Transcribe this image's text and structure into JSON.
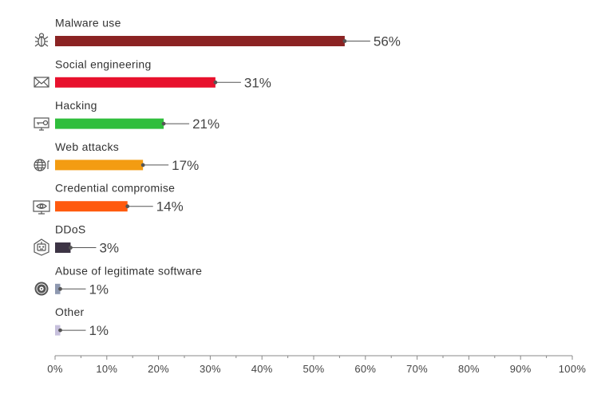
{
  "chart_data": {
    "type": "bar",
    "orientation": "horizontal",
    "title": "",
    "xlabel": "",
    "ylabel": "",
    "xlim": [
      0,
      100
    ],
    "grid": false,
    "legend": "none",
    "ticks": [
      "0%",
      "10%",
      "20%",
      "30%",
      "40%",
      "50%",
      "60%",
      "70%",
      "80%",
      "90%",
      "100%"
    ],
    "categories": [
      {
        "label": "Malware use",
        "value": 56,
        "value_label": "56%",
        "color": "#8b2323",
        "icon": "bug-icon"
      },
      {
        "label": "Social engineering",
        "value": 31,
        "value_label": "31%",
        "color": "#e8112d",
        "icon": "envelope-icon"
      },
      {
        "label": "Hacking",
        "value": 21,
        "value_label": "21%",
        "color": "#2fbe3c",
        "icon": "monitor-key-icon"
      },
      {
        "label": "Web attacks",
        "value": 17,
        "value_label": "17%",
        "color": "#f39c12",
        "icon": "globe-icon"
      },
      {
        "label": "Credential compromise",
        "value": 14,
        "value_label": "14%",
        "color": "#ff5a0e",
        "icon": "monitor-eye-icon"
      },
      {
        "label": "DDoS",
        "value": 3,
        "value_label": "3%",
        "color": "#3d3445",
        "icon": "robot-icon"
      },
      {
        "label": "Abuse of legitimate software",
        "value": 1,
        "value_label": "1%",
        "color": "#8e98b0",
        "icon": "disc-icon"
      },
      {
        "label": "Other",
        "value": 1,
        "value_label": "1%",
        "color": "#c7c0dc",
        "icon": ""
      }
    ]
  }
}
